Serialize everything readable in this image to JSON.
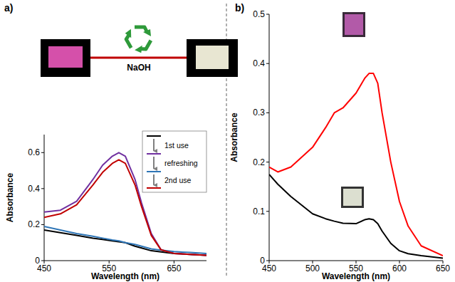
{
  "chart_data": [
    {
      "type": "line",
      "title": "a)",
      "x_label": "Wavelength (nm)",
      "y_label": "Absorbance",
      "x": [
        450,
        475,
        500,
        525,
        540,
        555,
        565,
        575,
        590,
        600,
        615,
        630,
        650,
        675,
        700
      ],
      "xlim": [
        450,
        700
      ],
      "xticks": [
        450,
        550,
        650
      ],
      "ylim": [
        0,
        0.7
      ],
      "yticks": [
        0,
        0.2,
        0.4,
        0.6
      ],
      "annotations": [
        "NaOH",
        "1st use",
        "refreshing",
        "2nd use"
      ],
      "series": [
        {
          "color": "#000000",
          "values": [
            0.17,
            0.155,
            0.14,
            0.125,
            0.118,
            0.11,
            0.105,
            0.1,
            0.08,
            0.07,
            0.055,
            0.048,
            0.04,
            0.035,
            0.03
          ]
        },
        {
          "color": "#7030a0",
          "values": [
            0.27,
            0.28,
            0.33,
            0.45,
            0.53,
            0.58,
            0.6,
            0.58,
            0.45,
            0.32,
            0.15,
            0.06,
            0.04,
            0.035,
            0.03
          ]
        },
        {
          "color": "#2e75b6",
          "values": [
            0.19,
            0.17,
            0.15,
            0.135,
            0.125,
            0.115,
            0.11,
            0.1,
            0.09,
            0.08,
            0.065,
            0.058,
            0.05,
            0.045,
            0.04
          ]
        },
        {
          "color": "#c00000",
          "values": [
            0.24,
            0.26,
            0.31,
            0.42,
            0.49,
            0.54,
            0.56,
            0.54,
            0.42,
            0.3,
            0.14,
            0.06,
            0.04,
            0.035,
            0.03
          ]
        }
      ]
    },
    {
      "type": "line",
      "title": "b)",
      "x_label": "Wavelength (nm)",
      "y_label": "Absorbance",
      "x": [
        450,
        460,
        475,
        500,
        515,
        525,
        535,
        550,
        560,
        565,
        570,
        575,
        580,
        590,
        600,
        610,
        625,
        650
      ],
      "xlim": [
        450,
        650
      ],
      "xticks": [
        450,
        500,
        550,
        600,
        650
      ],
      "ylim": [
        0,
        0.5
      ],
      "yticks": [
        0,
        0.1,
        0.2,
        0.3,
        0.4,
        0.5
      ],
      "series": [
        {
          "color": "#ff0000",
          "values": [
            0.19,
            0.18,
            0.19,
            0.23,
            0.27,
            0.3,
            0.31,
            0.34,
            0.37,
            0.38,
            0.38,
            0.36,
            0.3,
            0.2,
            0.12,
            0.07,
            0.03,
            0.01
          ]
        },
        {
          "color": "#000000",
          "values": [
            0.175,
            0.155,
            0.13,
            0.095,
            0.085,
            0.08,
            0.076,
            0.075,
            0.083,
            0.085,
            0.083,
            0.075,
            0.06,
            0.035,
            0.02,
            0.014,
            0.01,
            0.005
          ]
        }
      ]
    }
  ]
}
